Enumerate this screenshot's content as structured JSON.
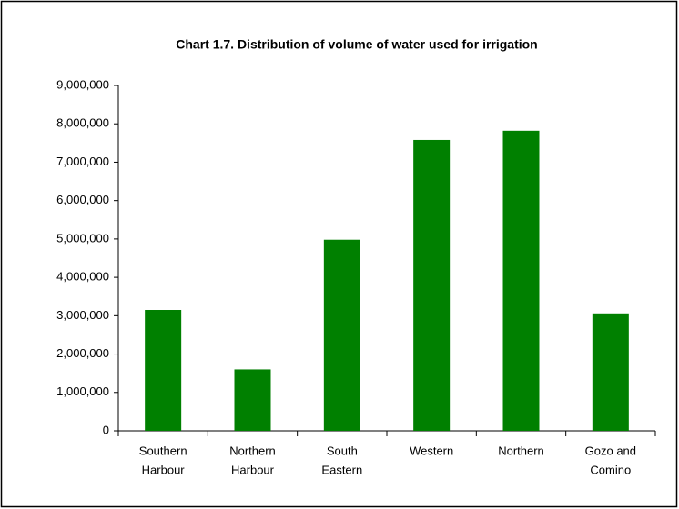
{
  "chart_data": {
    "type": "bar",
    "title": "Chart 1.7. Distribution of volume of water used for irrigation",
    "categories": [
      [
        "Southern",
        "Harbour"
      ],
      [
        "Northern",
        "Harbour"
      ],
      [
        "South",
        "Eastern"
      ],
      [
        "Western"
      ],
      [
        "Northern"
      ],
      [
        "Gozo and",
        "Comino"
      ]
    ],
    "values": [
      3150000,
      1600000,
      4980000,
      7580000,
      7820000,
      3060000
    ],
    "color": "#008000",
    "ylim": [
      0,
      9000000
    ],
    "yticks": [
      0,
      {
        "value": 1000000,
        "label": "1,000,000"
      },
      {
        "value": 2000000,
        "label": "2,000,000"
      },
      {
        "value": 3000000,
        "label": "3,000,000"
      },
      {
        "value": 4000000,
        "label": "4,000,000"
      },
      {
        "value": 5000000,
        "label": "5,000,000"
      },
      {
        "value": 6000000,
        "label": "6,000,000"
      },
      {
        "value": 7000000,
        "label": "7,000,000"
      },
      {
        "value": 8000000,
        "label": "8,000,000"
      },
      {
        "value": 9000000,
        "label": "9,000,000"
      }
    ],
    "grid": false
  }
}
